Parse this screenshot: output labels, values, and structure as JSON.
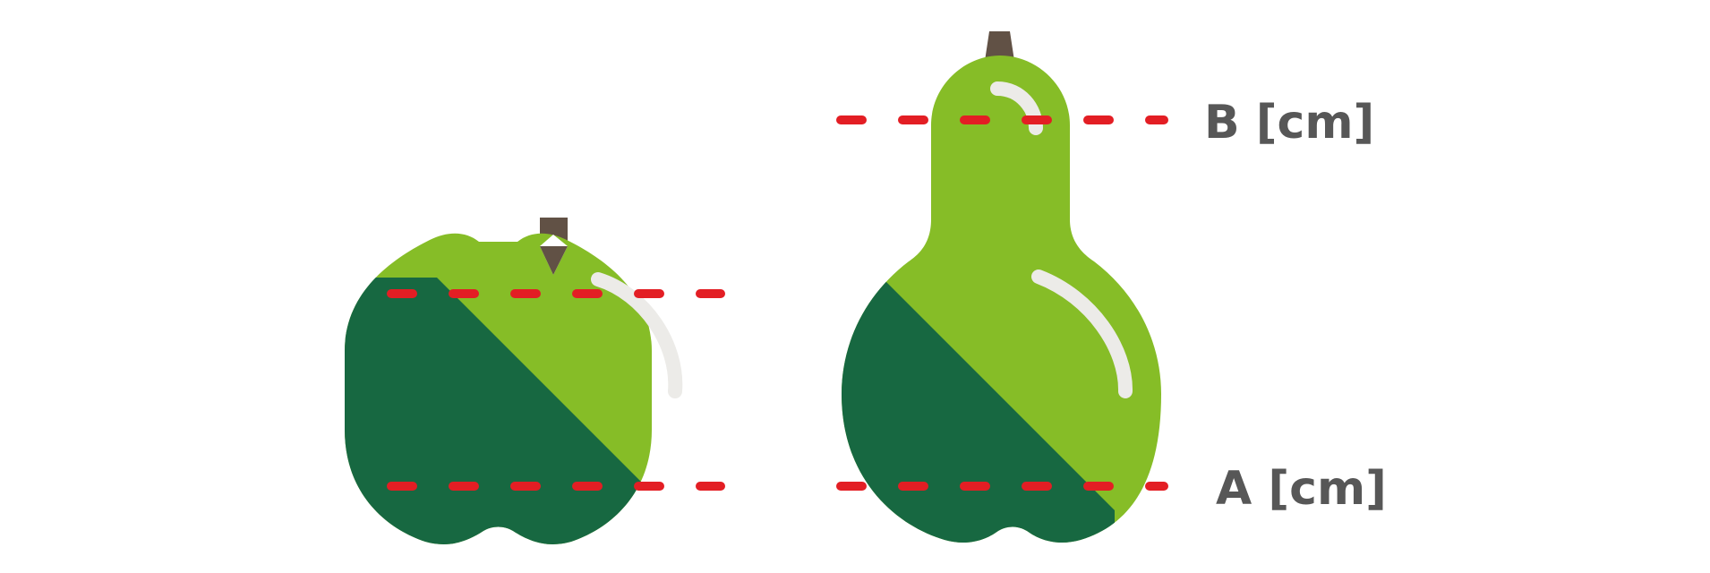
{
  "labels": {
    "a": "A [cm]",
    "b": "B [cm]"
  },
  "colors": {
    "light_green": "#86bd27",
    "dark_green": "#176841",
    "stem": "#615145",
    "highlight": "#ecebe8",
    "measure_line": "#e31e24",
    "label_text": "#575757",
    "background": "#ffffff"
  },
  "icons": [
    "apple-icon",
    "pear-icon"
  ]
}
